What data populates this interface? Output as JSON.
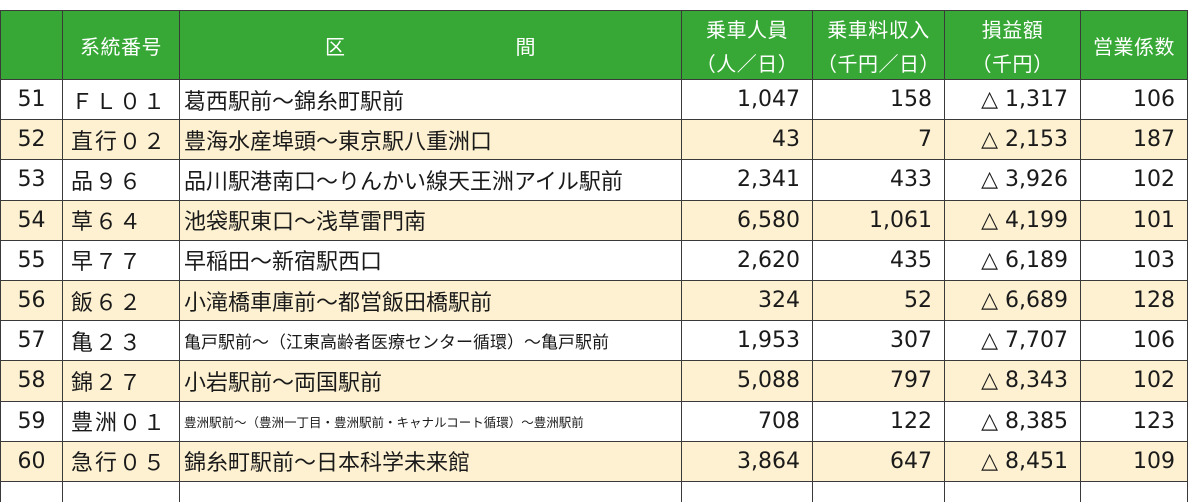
{
  "header": {
    "code": "系統番号",
    "section_left": "区",
    "section_right": "間",
    "riders_top": "乗車人員",
    "riders_bottom": "（人／日）",
    "fare_top": "乗車料収入",
    "fare_bottom": "（千円／日）",
    "pl_top": "損益額",
    "pl_bottom": "（千円）",
    "coefficient": "営業係数"
  },
  "rows": [
    {
      "no": "51",
      "code": "ＦＬ０１",
      "section": "葛西駅前～錦糸町駅前",
      "riders": "1,047",
      "fare": "158",
      "pl": "△ 1,317",
      "coef": "106"
    },
    {
      "no": "52",
      "code": "直行０２",
      "section": "豊海水産埠頭～東京駅八重洲口",
      "riders": "43",
      "fare": "7",
      "pl": "△ 2,153",
      "coef": "187"
    },
    {
      "no": "53",
      "code": "品９６",
      "section": "品川駅港南口～りんかい線天王洲アイル駅前",
      "riders": "2,341",
      "fare": "433",
      "pl": "△ 3,926",
      "coef": "102"
    },
    {
      "no": "54",
      "code": "草６４",
      "section": "池袋駅東口～浅草雷門南",
      "riders": "6,580",
      "fare": "1,061",
      "pl": "△ 4,199",
      "coef": "101"
    },
    {
      "no": "55",
      "code": "早７７",
      "section": "早稲田～新宿駅西口",
      "riders": "2,620",
      "fare": "435",
      "pl": "△ 6,189",
      "coef": "103"
    },
    {
      "no": "56",
      "code": "飯６２",
      "section": "小滝橋車庫前～都営飯田橋駅前",
      "riders": "324",
      "fare": "52",
      "pl": "△ 6,689",
      "coef": "128"
    },
    {
      "no": "57",
      "code": "亀２３",
      "section": "亀戸駅前～（江東高齢者医療センター循環）～亀戸駅前",
      "riders": "1,953",
      "fare": "307",
      "pl": "△ 7,707",
      "coef": "106"
    },
    {
      "no": "58",
      "code": "錦２７",
      "section": "小岩駅前～両国駅前",
      "riders": "5,088",
      "fare": "797",
      "pl": "△ 8,343",
      "coef": "102"
    },
    {
      "no": "59",
      "code": "豊洲０１",
      "section": "豊洲駅前～（豊洲一丁目・豊洲駅前・キャナルコート循環）～豊洲駅前",
      "riders": "708",
      "fare": "122",
      "pl": "△ 8,385",
      "coef": "123"
    },
    {
      "no": "60",
      "code": "急行０５",
      "section": "錦糸町駅前～日本科学未来館",
      "riders": "3,864",
      "fare": "647",
      "pl": "△ 8,451",
      "coef": "109"
    }
  ]
}
